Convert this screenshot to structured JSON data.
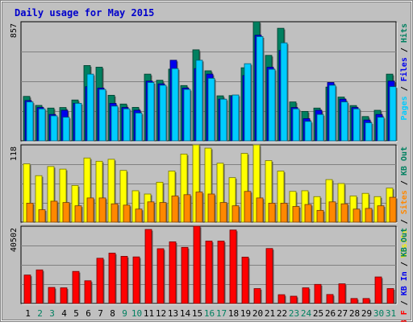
{
  "chart_data": {
    "type": "bar",
    "title": "Daily usage for May 2015",
    "days": [
      "1",
      "2",
      "3",
      "4",
      "5",
      "6",
      "7",
      "8",
      "9",
      "10",
      "11",
      "12",
      "13",
      "14",
      "15",
      "16",
      "17",
      "18",
      "19",
      "20",
      "21",
      "22",
      "23",
      "24",
      "25",
      "26",
      "27",
      "28",
      "29",
      "30",
      "31"
    ],
    "weekend_days": [
      "2",
      "3",
      "9",
      "10",
      "16",
      "17",
      "23",
      "24",
      "30",
      "31"
    ],
    "grid": true,
    "panels": [
      {
        "max_label": "857",
        "ymax": 857,
        "side_labels": [
          {
            "text": "Pages",
            "color": "#00ccff"
          },
          {
            "text": " / ",
            "color": "#000000"
          },
          {
            "text": "Files",
            "color": "#0000ee"
          },
          {
            "text": " / ",
            "color": "#000000"
          },
          {
            "text": "Hits",
            "color": "#008060"
          }
        ],
        "series": [
          {
            "key": "hits",
            "color": "#008060",
            "values": [
              320,
              255,
              236,
              240,
              294,
              542,
              530,
              328,
              265,
              241,
              480,
              436,
              516,
              398,
              655,
              504,
              324,
              326,
              526,
              857,
              615,
              810,
              280,
              212,
              236,
              387,
              315,
              254,
              175,
              220,
              480
            ]
          },
          {
            "key": "files",
            "color": "#0000ee",
            "values": [
              290,
              240,
              190,
              220,
              270,
              390,
              380,
              270,
              240,
              220,
              430,
              410,
              580,
              380,
              520,
              480,
              300,
              320,
              470,
              760,
              530,
              650,
              240,
              160,
              220,
              420,
              300,
              240,
              150,
              190,
              430
            ]
          },
          {
            "key": "pages",
            "color": "#00ccff",
            "values": [
              280,
              230,
              180,
              170,
              270,
              480,
              370,
              250,
              230,
              200,
              420,
              400,
              520,
              370,
              580,
              450,
              300,
              330,
              555,
              750,
              515,
              705,
              230,
              140,
              190,
              400,
              280,
              230,
              130,
              170,
              390
            ]
          }
        ]
      },
      {
        "max_label": "118",
        "ymax": 118,
        "side_labels": [
          {
            "text": "Visits",
            "color": "#eeee00"
          },
          {
            "text": " / ",
            "color": "#000000"
          },
          {
            "text": "Sites",
            "color": "#ff8800"
          },
          {
            "text": " / ",
            "color": "#000000"
          },
          {
            "text": "KB Out",
            "color": "#008060"
          }
        ],
        "series": [
          {
            "key": "visits",
            "color": "#ffff00",
            "values": [
              89,
              71,
              85,
              81,
              56,
              98,
              93,
              96,
              79,
              48,
              43,
              61,
              78,
              104,
              118,
              113,
              90,
              68,
              105,
              118,
              94,
              78,
              47,
              48,
              39,
              65,
              59,
              40,
              44,
              39,
              52
            ]
          },
          {
            "key": "sites",
            "color": "#ff8800",
            "values": [
              29,
              19,
              32,
              30,
              25,
              37,
              37,
              28,
              26,
              20,
              31,
              30,
              40,
              42,
              46,
              43,
              30,
              25,
              47,
              37,
              29,
              29,
              24,
              27,
              18,
              31,
              28,
              20,
              21,
              25,
              38
            ]
          }
        ]
      },
      {
        "max_label": "40502",
        "ymax": 40502,
        "side_labels": [
          {
            "text": "KB F",
            "color": "#ff0000"
          },
          {
            "text": " / ",
            "color": "#000000"
          },
          {
            "text": "KB In",
            "color": "#0000ee"
          },
          {
            "text": " / ",
            "color": "#000000"
          },
          {
            "text": "KB Out",
            "color": "#008060"
          }
        ],
        "series": [
          {
            "key": "kbf",
            "color": "#ff0000",
            "values": [
              14900,
              17600,
              8400,
              8200,
              16800,
              11900,
              23700,
              26400,
              24700,
              24400,
              38800,
              28700,
              32300,
              29400,
              41000,
              32700,
              32700,
              38500,
              24300,
              7800,
              28800,
              4600,
              3800,
              8200,
              10000,
              4700,
              10300,
              2600,
              2600,
              13900,
              7800
            ]
          }
        ]
      }
    ]
  }
}
